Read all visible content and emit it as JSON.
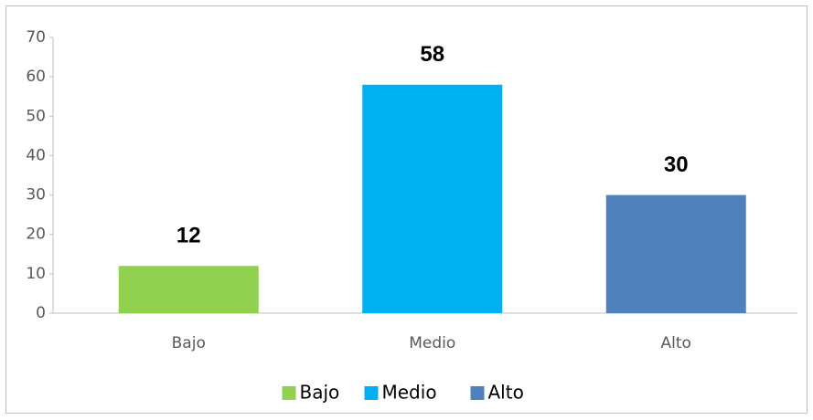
{
  "chart_data": {
    "type": "bar",
    "categories": [
      "Bajo",
      "Medio",
      "Alto"
    ],
    "values": [
      12,
      58,
      30
    ],
    "colors": [
      "#92d050",
      "#00b0f0",
      "#4f81bd"
    ],
    "ylim": [
      0,
      70
    ],
    "yticks": [
      0,
      10,
      20,
      30,
      40,
      50,
      60,
      70
    ],
    "grid": false,
    "legend": "bottom"
  }
}
